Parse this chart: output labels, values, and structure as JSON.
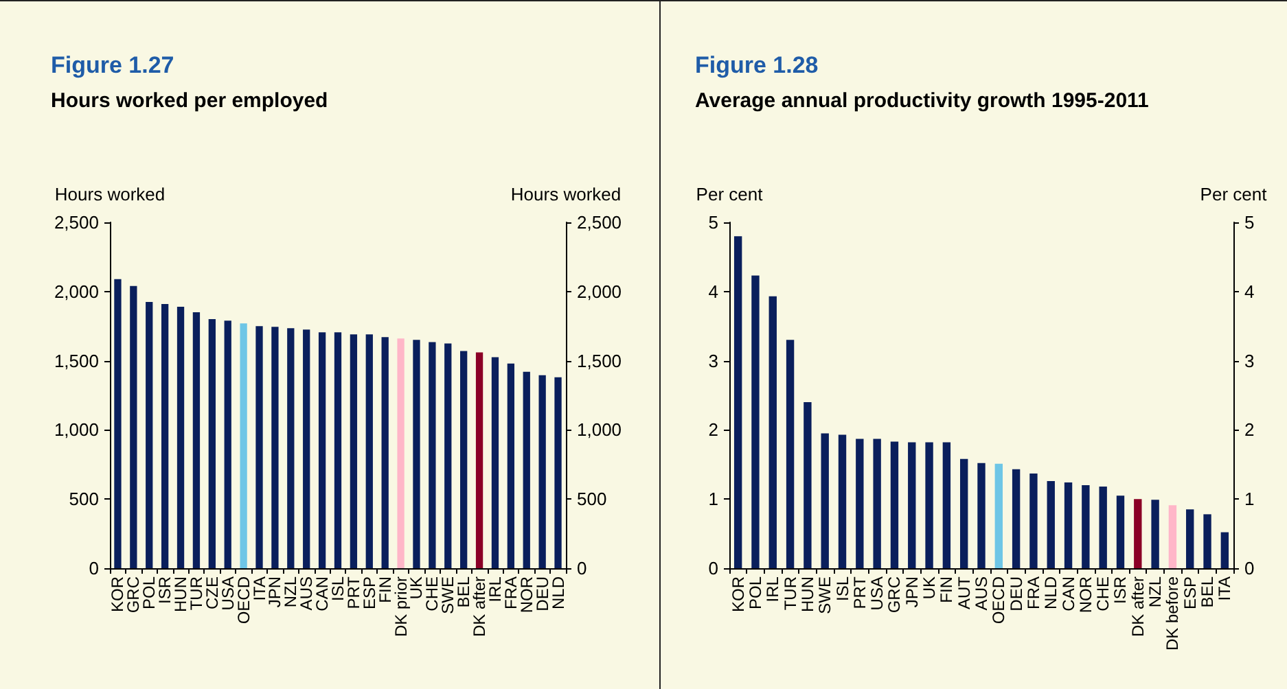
{
  "chart_data": [
    {
      "type": "bar",
      "title": "Figure 1.27",
      "subtitle": "Hours worked per employed",
      "ylabel": "Hours worked",
      "y2label": "Hours worked",
      "categories": [
        "KOR",
        "GRC",
        "POL",
        "ISR",
        "HUN",
        "TUR",
        "CZE",
        "USA",
        "OECD",
        "ITA",
        "JPN",
        "NZL",
        "AUS",
        "CAN",
        "ISL",
        "PRT",
        "ESP",
        "FIN",
        "DK prior",
        "UK",
        "CHE",
        "SWE",
        "BEL",
        "DK after",
        "IRL",
        "FRA",
        "NOR",
        "DEU",
        "NLD"
      ],
      "values": [
        2090,
        2040,
        1925,
        1910,
        1890,
        1850,
        1800,
        1790,
        1770,
        1750,
        1745,
        1735,
        1725,
        1705,
        1705,
        1690,
        1690,
        1670,
        1660,
        1650,
        1635,
        1625,
        1570,
        1560,
        1525,
        1480,
        1420,
        1395,
        1380
      ],
      "colors": [
        "#0a1f5c",
        "#0a1f5c",
        "#0a1f5c",
        "#0a1f5c",
        "#0a1f5c",
        "#0a1f5c",
        "#0a1f5c",
        "#0a1f5c",
        "#6ec6e6",
        "#0a1f5c",
        "#0a1f5c",
        "#0a1f5c",
        "#0a1f5c",
        "#0a1f5c",
        "#0a1f5c",
        "#0a1f5c",
        "#0a1f5c",
        "#0a1f5c",
        "#ffb6c8",
        "#0a1f5c",
        "#0a1f5c",
        "#0a1f5c",
        "#0a1f5c",
        "#8b0026",
        "#0a1f5c",
        "#0a1f5c",
        "#0a1f5c",
        "#0a1f5c",
        "#0a1f5c"
      ],
      "ylim": [
        0,
        2500
      ],
      "yticks": [
        {
          "value": 0,
          "label": "0"
        },
        {
          "value": 500,
          "label": "500"
        },
        {
          "value": 1000,
          "label": "1,000"
        },
        {
          "value": 1500,
          "label": "1,500"
        },
        {
          "value": 2000,
          "label": "2,000"
        },
        {
          "value": 2500,
          "label": "2,500"
        }
      ],
      "y2lim": [
        0,
        2500
      ],
      "y2ticks": [
        {
          "value": 0,
          "label": "0"
        },
        {
          "value": 500,
          "label": "500"
        },
        {
          "value": 1000,
          "label": "1,000"
        },
        {
          "value": 1500,
          "label": "1,500"
        },
        {
          "value": 2000,
          "label": "2,000"
        },
        {
          "value": 2500,
          "label": "2,500"
        }
      ],
      "grid": false
    },
    {
      "type": "bar",
      "title": "Figure 1.28",
      "subtitle": "Average annual productivity growth 1995-2011",
      "ylabel": "Per cent",
      "y2label": "Per cent",
      "categories": [
        "KOR",
        "POL",
        "IRL",
        "TUR",
        "HUN",
        "SWE",
        "ISL",
        "PRT",
        "USA",
        "GRC",
        "JPN",
        "UK",
        "FIN",
        "AUT",
        "AUS",
        "OECD",
        "DEU",
        "FRA",
        "NLD",
        "CAN",
        "NOR",
        "CHE",
        "ISR",
        "DK after",
        "NZL",
        "DK before",
        "ESP",
        "BEL",
        "ITA"
      ],
      "values": [
        4.8,
        4.23,
        3.93,
        3.3,
        2.4,
        1.95,
        1.93,
        1.87,
        1.87,
        1.83,
        1.82,
        1.82,
        1.82,
        1.58,
        1.52,
        1.51,
        1.43,
        1.37,
        1.26,
        1.24,
        1.2,
        1.18,
        1.05,
        1.0,
        0.99,
        0.91,
        0.85,
        0.78,
        0.52
      ],
      "colors": [
        "#0a1f5c",
        "#0a1f5c",
        "#0a1f5c",
        "#0a1f5c",
        "#0a1f5c",
        "#0a1f5c",
        "#0a1f5c",
        "#0a1f5c",
        "#0a1f5c",
        "#0a1f5c",
        "#0a1f5c",
        "#0a1f5c",
        "#0a1f5c",
        "#0a1f5c",
        "#0a1f5c",
        "#6ec6e6",
        "#0a1f5c",
        "#0a1f5c",
        "#0a1f5c",
        "#0a1f5c",
        "#0a1f5c",
        "#0a1f5c",
        "#0a1f5c",
        "#8b0026",
        "#0a1f5c",
        "#ffb6c8",
        "#0a1f5c",
        "#0a1f5c",
        "#0a1f5c"
      ],
      "ylim": [
        0,
        5
      ],
      "yticks": [
        0,
        1,
        2,
        3,
        4,
        5
      ],
      "y2lim": [
        0,
        5
      ],
      "y2ticks": [
        0,
        1,
        2,
        3,
        4,
        5
      ],
      "grid": false
    }
  ]
}
